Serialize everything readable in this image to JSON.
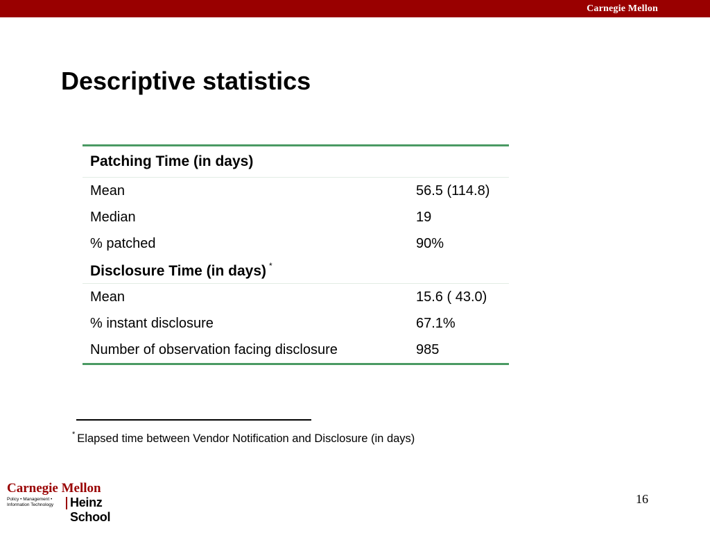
{
  "header": {
    "logo_text": "Carnegie Mellon"
  },
  "title": "Descriptive statistics",
  "table": {
    "section1_title": "Patching Time (in days)",
    "section1_rows": [
      {
        "label": "Mean",
        "value": "56.5 (114.8)"
      },
      {
        "label": "Median",
        "value": "19"
      },
      {
        "label": "% patched",
        "value": "90%"
      }
    ],
    "section2_title": "Disclosure Time (in days)",
    "section2_marker": "*",
    "section2_rows": [
      {
        "label": "Mean",
        "value": "15.6 ( 43.0)"
      },
      {
        "label": "% instant disclosure",
        "value": "67.1%"
      },
      {
        "label": "Number of observation facing disclosure",
        "value": "985"
      }
    ]
  },
  "footnote": {
    "marker": "*",
    "text": "Elapsed time between Vendor Notification and Disclosure (in days)"
  },
  "footer_logo": {
    "cmu": "Carnegie Mellon",
    "policy_line1": "Policy • Management •",
    "policy_line2": "Information Technology",
    "heinz": "Heinz School"
  },
  "page_number": "16"
}
